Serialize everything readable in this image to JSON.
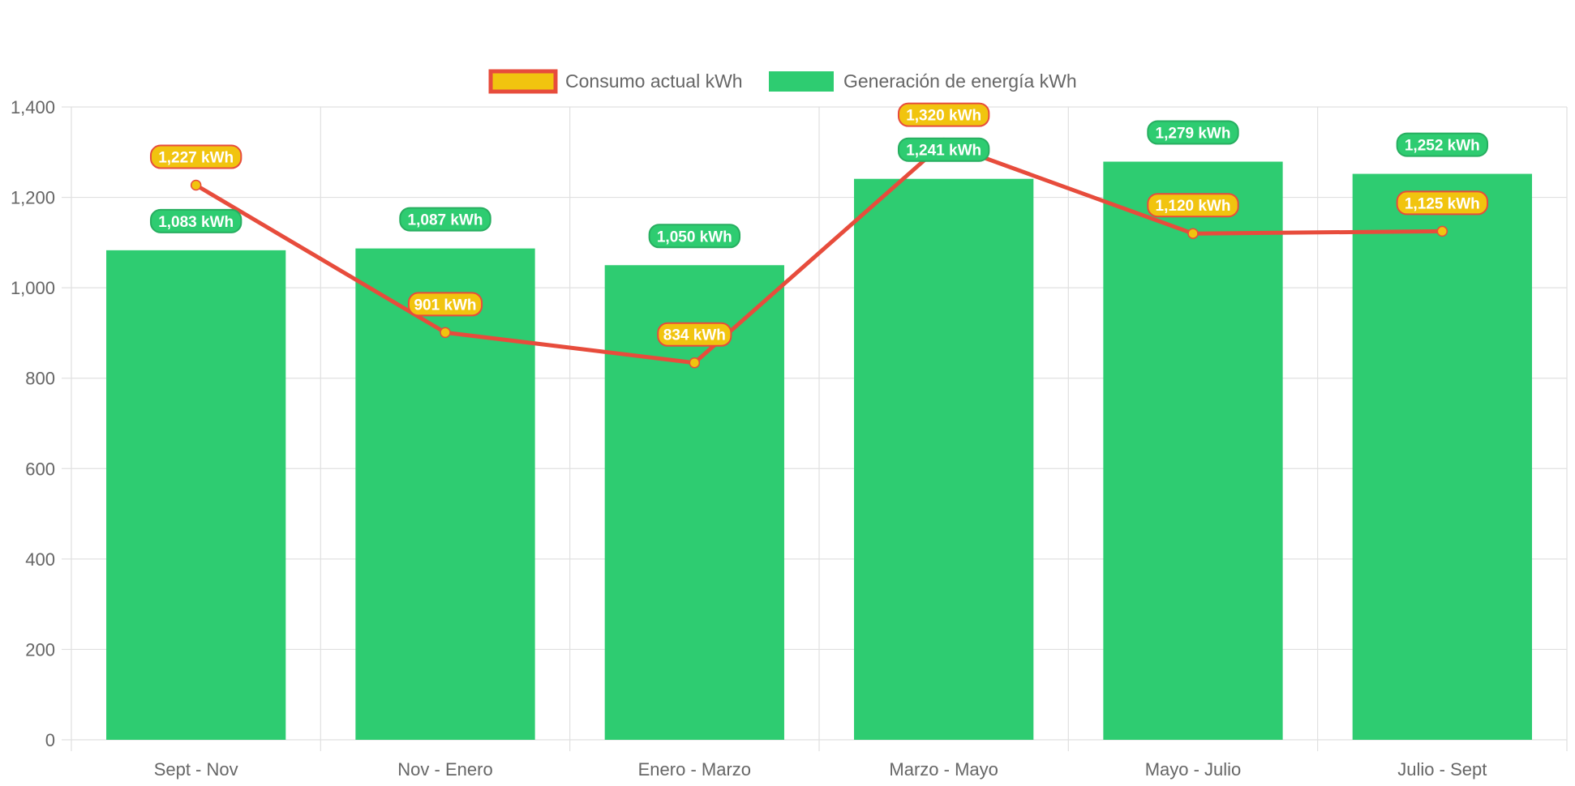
{
  "chart_data": {
    "type": "bar",
    "categories": [
      "Sept - Nov",
      "Nov - Enero",
      "Enero - Marzo",
      "Marzo - Mayo",
      "Mayo - Julio",
      "Julio - Sept"
    ],
    "series": [
      {
        "name": "Consumo actual kWh",
        "type": "line",
        "values": [
          1227,
          901,
          834,
          1320,
          1120,
          1125
        ],
        "data_labels": [
          "1,227 kWh",
          "901 kWh",
          "834 kWh",
          "1,320 kWh",
          "1,120 kWh",
          "1,125 kWh"
        ],
        "line_color": "#e74c3c",
        "point_color": "#f1c40f"
      },
      {
        "name": "Generación de energía kWh",
        "type": "bar",
        "values": [
          1083,
          1087,
          1050,
          1241,
          1279,
          1252
        ],
        "data_labels": [
          "1,083 kWh",
          "1,087 kWh",
          "1,050 kWh",
          "1,241 kWh",
          "1,279 kWh",
          "1,252 kWh"
        ],
        "color": "#2ecc71"
      }
    ],
    "y_ticks": [
      "0",
      "200",
      "400",
      "600",
      "800",
      "1,000",
      "1,200",
      "1,400"
    ],
    "ylim": [
      0,
      1400
    ],
    "grid": true,
    "legend_position": "top-center",
    "colors": {
      "grid": "#e0e0e0",
      "axis_text": "#666666",
      "bar": "#2ecc71",
      "line": "#e74c3c",
      "point": "#f1c40f",
      "label_text": "#ffffff"
    }
  }
}
